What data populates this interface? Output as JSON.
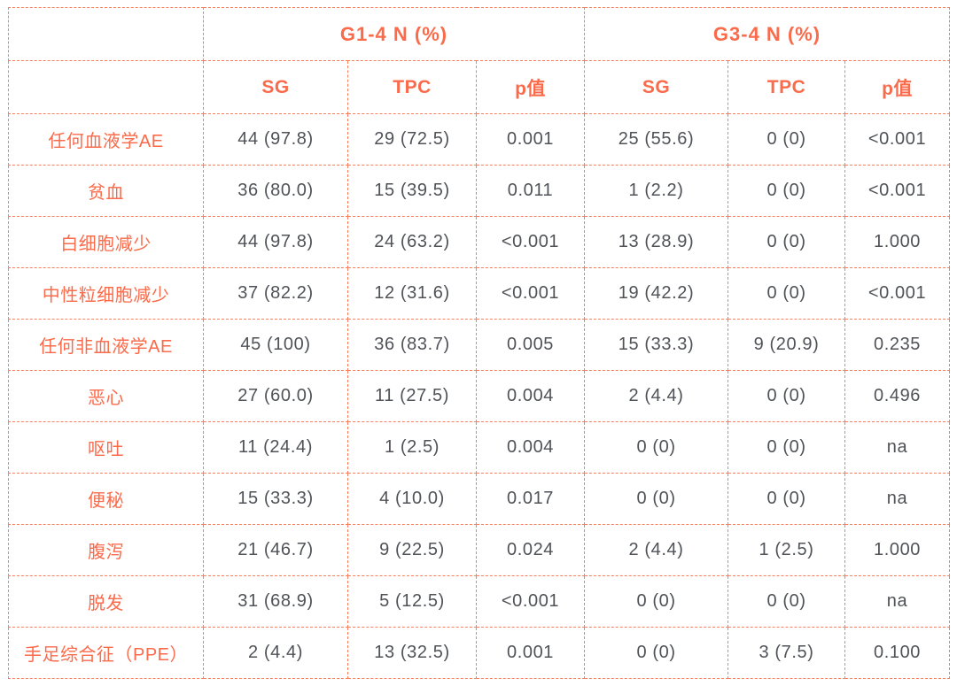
{
  "colors": {
    "accent": "#fa6b4b",
    "border": "#fb7e5c",
    "data_text": "#4f5257",
    "background": "#ffffff"
  },
  "chart_data": {
    "type": "table",
    "title": "",
    "group_headers": [
      "G1-4 N (%)",
      "G3-4 N (%)"
    ],
    "sub_headers": [
      "SG",
      "TPC",
      "p值",
      "SG",
      "TPC",
      "p值"
    ],
    "corner_label": "",
    "rows": [
      {
        "label": "任何血液学AE",
        "cells": [
          "44 (97.8)",
          "29 (72.5)",
          "0.001",
          "25 (55.6)",
          "0 (0)",
          "<0.001"
        ]
      },
      {
        "label": "贫血",
        "cells": [
          "36 (80.0)",
          "15 (39.5)",
          "0.011",
          "1 (2.2)",
          "0 (0)",
          "<0.001"
        ]
      },
      {
        "label": "白细胞减少",
        "cells": [
          "44 (97.8)",
          "24 (63.2)",
          "<0.001",
          "13 (28.9)",
          "0 (0)",
          "1.000"
        ]
      },
      {
        "label": "中性粒细胞减少",
        "cells": [
          "37 (82.2)",
          "12 (31.6)",
          "<0.001",
          "19 (42.2)",
          "0 (0)",
          "<0.001"
        ]
      },
      {
        "label": "任何非血液学AE",
        "cells": [
          "45 (100)",
          "36 (83.7)",
          "0.005",
          "15 (33.3)",
          "9 (20.9)",
          "0.235"
        ]
      },
      {
        "label": "恶心",
        "cells": [
          "27 (60.0)",
          "11 (27.5)",
          "0.004",
          "2 (4.4)",
          "0 (0)",
          "0.496"
        ]
      },
      {
        "label": "呕吐",
        "cells": [
          "11 (24.4)",
          "1 (2.5)",
          "0.004",
          "0 (0)",
          "0 (0)",
          "na"
        ]
      },
      {
        "label": "便秘",
        "cells": [
          "15 (33.3)",
          "4 (10.0)",
          "0.017",
          "0 (0)",
          "0 (0)",
          "na"
        ]
      },
      {
        "label": "腹泻",
        "cells": [
          "21 (46.7)",
          "9 (22.5)",
          "0.024",
          "2 (4.4)",
          "1 (2.5)",
          "1.000"
        ]
      },
      {
        "label": "脱发",
        "cells": [
          "31 (68.9)",
          "5 (12.5)",
          "<0.001",
          "0 (0)",
          "0 (0)",
          "na"
        ]
      },
      {
        "label": "手足综合征（PPE）",
        "cells": [
          "2 (4.4)",
          "13 (32.5)",
          "0.001",
          "0 (0)",
          "3 (7.5)",
          "0.100"
        ]
      }
    ]
  }
}
